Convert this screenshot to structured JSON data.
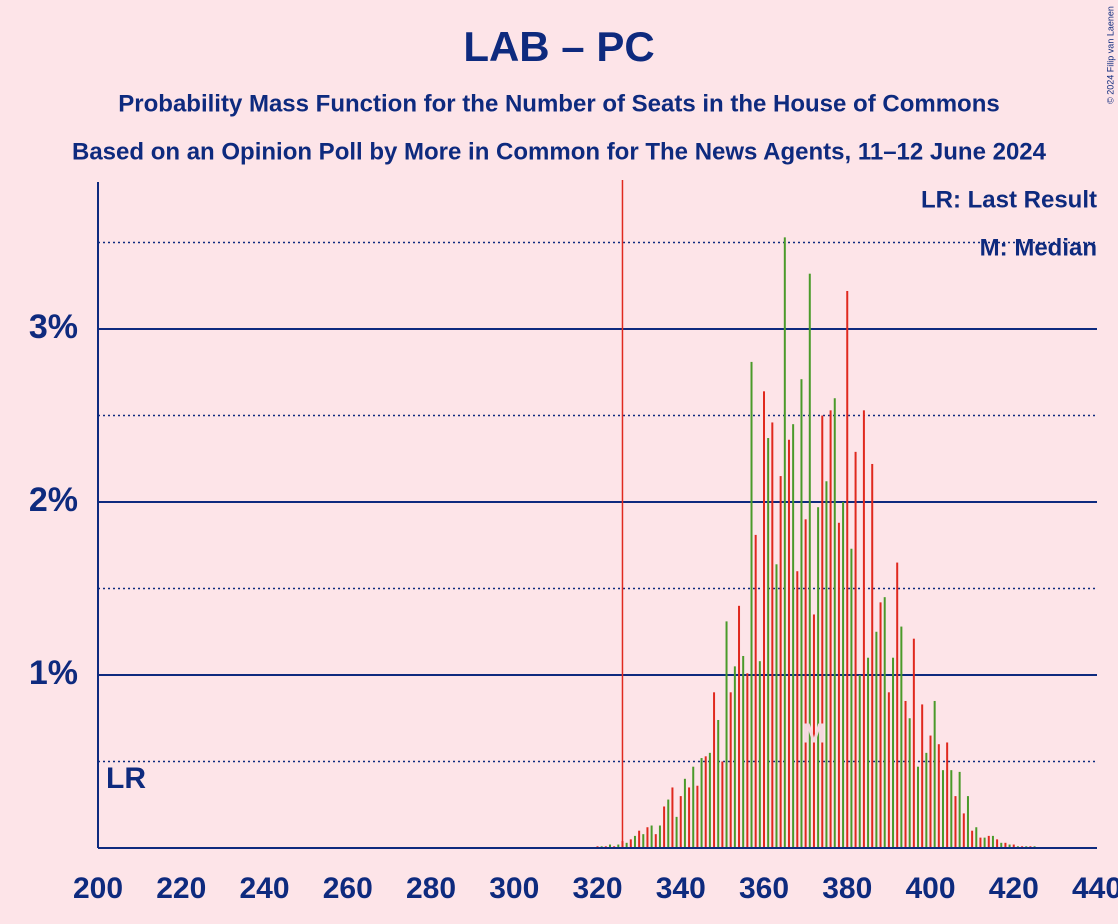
{
  "chart_data": {
    "type": "bar",
    "title": "LAB – PC",
    "subtitle": "Probability Mass Function for the Number of Seats in the House of Commons",
    "subtitle2": "Based on an Opinion Poll by More in Common for The News Agents, 11–12 June 2024",
    "copyright": "© 2024 Filip van Laenen",
    "legend": [
      "LR: Last Result",
      "M: Median"
    ],
    "last_result": 326,
    "last_result_label": "LR",
    "median": 372,
    "median_label": "M",
    "bar_colors": [
      "#e0281e",
      "#4a9a2a"
    ],
    "x": [
      320,
      321,
      322,
      323,
      324,
      325,
      326,
      327,
      328,
      329,
      330,
      331,
      332,
      333,
      334,
      335,
      336,
      337,
      338,
      339,
      340,
      341,
      342,
      343,
      344,
      345,
      346,
      347,
      348,
      349,
      350,
      351,
      352,
      353,
      354,
      355,
      356,
      357,
      358,
      359,
      360,
      361,
      362,
      363,
      364,
      365,
      366,
      367,
      368,
      369,
      370,
      371,
      372,
      373,
      374,
      375,
      376,
      377,
      378,
      379,
      380,
      381,
      382,
      383,
      384,
      385,
      386,
      387,
      388,
      389,
      390,
      391,
      392,
      393,
      394,
      395,
      396,
      397,
      398,
      399,
      400,
      401,
      402,
      403,
      404,
      405,
      406,
      407,
      408,
      409,
      410,
      411,
      412,
      413,
      414,
      415,
      416,
      417,
      418,
      419,
      420,
      421,
      422,
      423,
      424,
      425
    ],
    "values": [
      0.01,
      0.01,
      0.01,
      0.02,
      0.01,
      0.02,
      0.04,
      0.03,
      0.05,
      0.07,
      0.1,
      0.08,
      0.12,
      0.13,
      0.08,
      0.13,
      0.24,
      0.28,
      0.35,
      0.18,
      0.3,
      0.4,
      0.35,
      0.47,
      0.36,
      0.52,
      0.53,
      0.55,
      0.9,
      0.74,
      0.5,
      1.31,
      0.9,
      1.05,
      1.4,
      1.11,
      1.01,
      2.81,
      1.81,
      1.08,
      2.64,
      2.37,
      2.46,
      1.64,
      2.15,
      3.53,
      2.36,
      2.45,
      1.6,
      2.71,
      1.9,
      3.32,
      1.35,
      1.97,
      2.5,
      2.12,
      2.53,
      2.6,
      1.88,
      2.0,
      3.22,
      1.73,
      2.29,
      1.0,
      2.53,
      1.1,
      2.22,
      1.25,
      1.42,
      1.45,
      0.9,
      1.1,
      1.65,
      1.28,
      0.85,
      0.75,
      1.21,
      0.47,
      0.83,
      0.55,
      0.65,
      0.85,
      0.6,
      0.45,
      0.61,
      0.45,
      0.3,
      0.44,
      0.2,
      0.3,
      0.1,
      0.12,
      0.06,
      0.06,
      0.07,
      0.07,
      0.05,
      0.03,
      0.03,
      0.02,
      0.02,
      0.01,
      0.01,
      0.01,
      0.01,
      0.01
    ],
    "xlim": [
      200,
      440
    ],
    "xticks": [
      200,
      220,
      240,
      260,
      280,
      300,
      320,
      340,
      360,
      380,
      400,
      420,
      440
    ],
    "ylim": [
      0,
      3.85
    ],
    "yticks": [
      {
        "value": 1,
        "label": "1%"
      },
      {
        "value": 2,
        "label": "2%"
      },
      {
        "value": 3,
        "label": "3%"
      }
    ],
    "minor_yticks": [
      0.5,
      1.5,
      2.5,
      3.5
    ],
    "grid": true
  }
}
